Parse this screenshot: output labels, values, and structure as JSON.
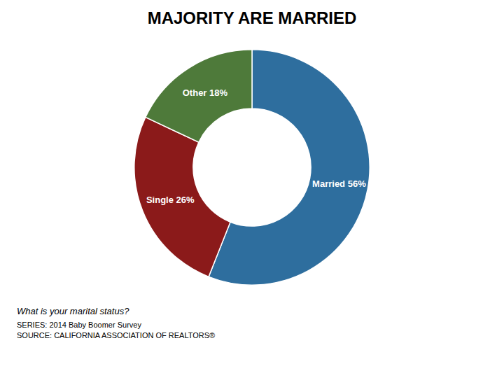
{
  "chart_data": {
    "type": "pie",
    "title": "MAJORITY ARE MARRIED",
    "categories": [
      "Married 56%",
      "Single 26%",
      "Other 18%"
    ],
    "values": [
      56,
      26,
      18
    ],
    "colors": [
      "#2E6E9E",
      "#8B1A1A",
      "#4E7A3A"
    ],
    "annotations": [
      "What is your marital status?",
      "SERIES: 2014 Baby Boomer Survey",
      "SOURCE: CALIFORNIA ASSOCIATION OF REALTORS®"
    ]
  }
}
